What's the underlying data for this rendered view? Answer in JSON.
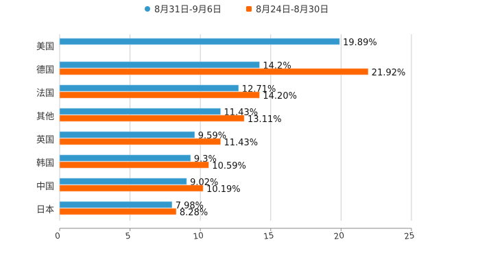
{
  "chart_data": {
    "type": "bar",
    "orientation": "horizontal",
    "title": "",
    "xlabel": "",
    "ylabel": "",
    "xlim": [
      0,
      25
    ],
    "x_ticks": [
      "0",
      "5",
      "10",
      "15",
      "20",
      "25"
    ],
    "grid": true,
    "legend_position": "top-center",
    "categories": [
      "美国",
      "德国",
      "法国",
      "其他",
      "英国",
      "韩国",
      "中国",
      "日本"
    ],
    "series": [
      {
        "name": "8月31日-9月6日",
        "color": "#3399CC",
        "values": [
          19.89,
          14.2,
          12.71,
          11.43,
          9.59,
          9.3,
          9.02,
          7.98
        ],
        "labels": [
          "19.89%",
          "14.2%",
          "12.71%",
          "11.43%",
          "9.59%",
          "9.3%",
          "9.02%",
          "7.98%"
        ]
      },
      {
        "name": "8月24日-8月30日",
        "color": "#FF6600",
        "values": [
          null,
          21.92,
          14.2,
          13.11,
          11.43,
          10.59,
          10.19,
          8.28
        ],
        "labels": [
          null,
          "21.92%",
          "14.20%",
          "13.11%",
          "11.43%",
          "10.59%",
          "10.19%",
          "8.28%"
        ]
      }
    ]
  }
}
